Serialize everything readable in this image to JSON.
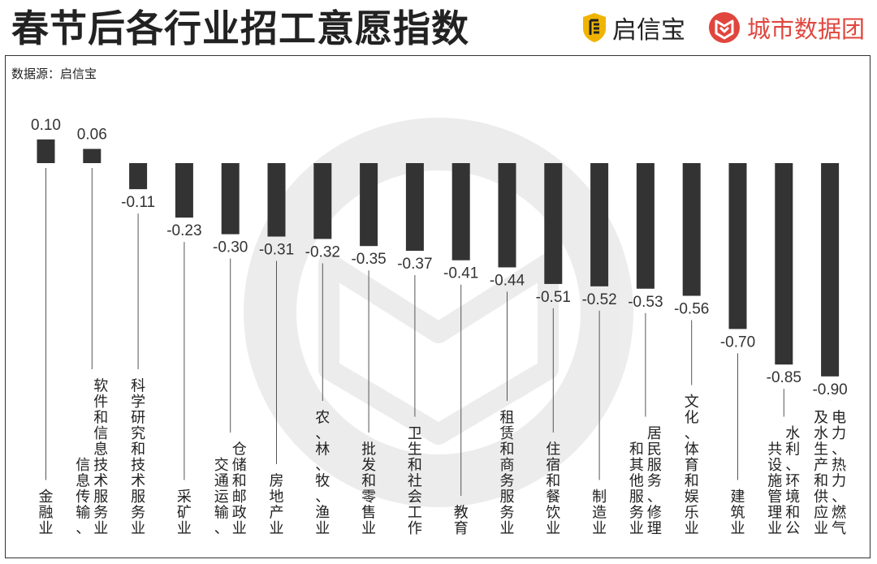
{
  "title": "春节后各行业招工意愿指数",
  "source": "数据源：启信宝",
  "brands": [
    {
      "name": "启信宝",
      "icon": "qixinbao-shield-icon",
      "color": "#f0b400"
    },
    {
      "name": "城市数据团",
      "icon": "city-data-group-logo-icon",
      "color": "#e0463e"
    }
  ],
  "chart_data": {
    "type": "bar",
    "title": "春节后各行业招工意愿指数",
    "categories": [
      "金融业",
      "信息传输、软件和信息技术服务业",
      "科学研究和技术服务业",
      "采矿业",
      "交通运输、仓储和邮政业",
      "房地产业",
      "农、林、牧、渔业",
      "批发和零售业",
      "卫生和社会工作",
      "教育",
      "租赁和商务服务业",
      "住宿和餐饮业",
      "制造业",
      "居民服务、修理和其他服务业",
      "文化、体育和娱乐业",
      "建筑业",
      "水利、环境和公共设施管理业",
      "电力、热力、燃气及水生产和供应业"
    ],
    "values": [
      0.1,
      0.06,
      -0.11,
      -0.23,
      -0.3,
      -0.31,
      -0.32,
      -0.35,
      -0.37,
      -0.41,
      -0.44,
      -0.51,
      -0.52,
      -0.53,
      -0.56,
      -0.7,
      -0.85,
      -0.9
    ],
    "value_labels": [
      "0.10",
      "0.06",
      "-0.11",
      "-0.23",
      "-0.30",
      "-0.31",
      "-0.32",
      "-0.35",
      "-0.37",
      "-0.41",
      "-0.44",
      "-0.51",
      "-0.52",
      "-0.53",
      "-0.56",
      "-0.70",
      "-0.85",
      "-0.90"
    ],
    "category_label_columns": [
      [
        "金融业"
      ],
      [
        "信息传输、",
        "软件和信息技术服务业"
      ],
      [
        "科学研究和技术服务业"
      ],
      [
        "采矿业"
      ],
      [
        "交通运输、",
        "仓储和邮政业"
      ],
      [
        "房地产业"
      ],
      [
        "农、林、牧、渔业"
      ],
      [
        "批发和零售业"
      ],
      [
        "卫生和社会工作"
      ],
      [
        "教育"
      ],
      [
        "租赁和商务服务业"
      ],
      [
        "住宿和餐饮业"
      ],
      [
        "制造业"
      ],
      [
        "和其他服务业",
        "居民服务、修理"
      ],
      [
        "文化、体育和娱乐业"
      ],
      [
        "建筑业"
      ],
      [
        "共设施管理业",
        "水利、环境和公"
      ],
      [
        "及水生产和供应业",
        "电力、热力、燃气"
      ]
    ],
    "bar_color": "#333333",
    "xlabel": "",
    "ylabel": ""
  }
}
